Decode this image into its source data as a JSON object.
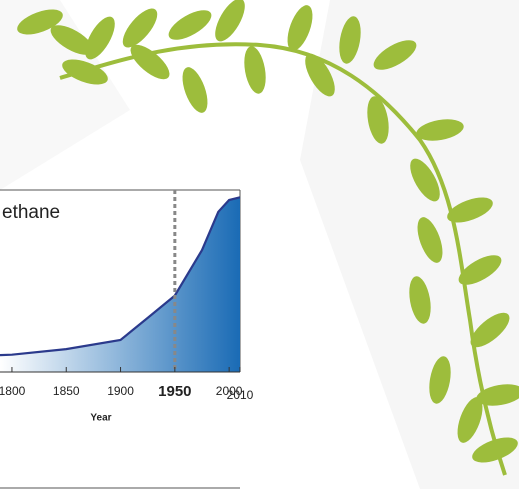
{
  "chart_data": {
    "type": "area",
    "title": "ethane",
    "x_label": "Year",
    "x": [
      1789,
      1800,
      1850,
      1900,
      1925,
      1950,
      1975,
      1990,
      2000,
      2010
    ],
    "values": [
      9.3,
      9.5,
      12.6,
      17.6,
      29.7,
      42,
      67,
      88,
      94.5,
      96
    ],
    "line_color": "#2b3a8c",
    "fill_color": "#1a6bb5",
    "xlim": [
      1789,
      2010
    ],
    "ylim": [
      0,
      100
    ],
    "xticks": [
      1800,
      1850,
      1900,
      1950,
      2000,
      2010
    ],
    "highlight_x": 1950
  }
}
